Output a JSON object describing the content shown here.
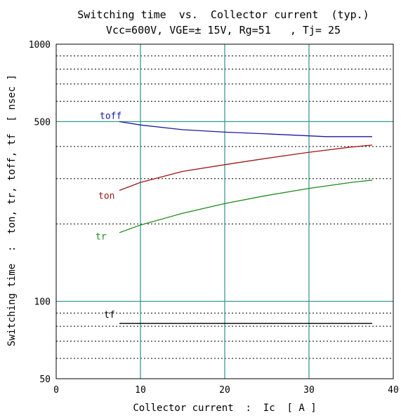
{
  "colors": {
    "background": "#ffffff",
    "frame": "#000000",
    "major_grid": "#3a9a96",
    "minor_grid": "#000000",
    "toff": "#1a1aa0",
    "ton": "#a01818",
    "tr": "#1e8a1e",
    "tf": "#000000"
  },
  "chart_data": {
    "type": "line",
    "title": "Switching time  vs.  Collector current  (typ.)",
    "subtitle": "Vcc=600V, VGE=± 15V, Rg=51   , Tj= 25",
    "xlabel": "Collector current  :  Ic  [ A ]",
    "ylabel": "Switching time  :  ton, tr, toff, tf  [ nsec ]",
    "xlim": [
      0,
      40
    ],
    "ylim": [
      50,
      1000
    ],
    "y_scale": "log",
    "grid": true,
    "x_ticks": [
      "0",
      "10",
      "20",
      "30",
      "40"
    ],
    "y_ticks": [
      "50",
      "100",
      "500",
      "1000"
    ],
    "x_tick_values": [
      0,
      10,
      20,
      30,
      40
    ],
    "y_tick_values": [
      50,
      100,
      500,
      1000
    ],
    "series": [
      {
        "name": "toff",
        "x": [
          7.5,
          10,
          15,
          20,
          25,
          30,
          32,
          35,
          37.5
        ],
        "y": [
          500,
          485,
          465,
          455,
          448,
          440,
          437,
          437,
          437
        ]
      },
      {
        "name": "ton",
        "x": [
          7.5,
          10,
          15,
          20,
          25,
          30,
          35,
          37.5
        ],
        "y": [
          270,
          290,
          320,
          340,
          360,
          380,
          398,
          405
        ]
      },
      {
        "name": "tr",
        "x": [
          7.5,
          10,
          15,
          20,
          25,
          30,
          35,
          37.5
        ],
        "y": [
          185,
          198,
          220,
          240,
          258,
          275,
          290,
          296
        ]
      },
      {
        "name": "tf",
        "x": [
          7.5,
          10,
          20,
          30,
          37.5
        ],
        "y": [
          82,
          82,
          82,
          82,
          82
        ]
      }
    ]
  }
}
